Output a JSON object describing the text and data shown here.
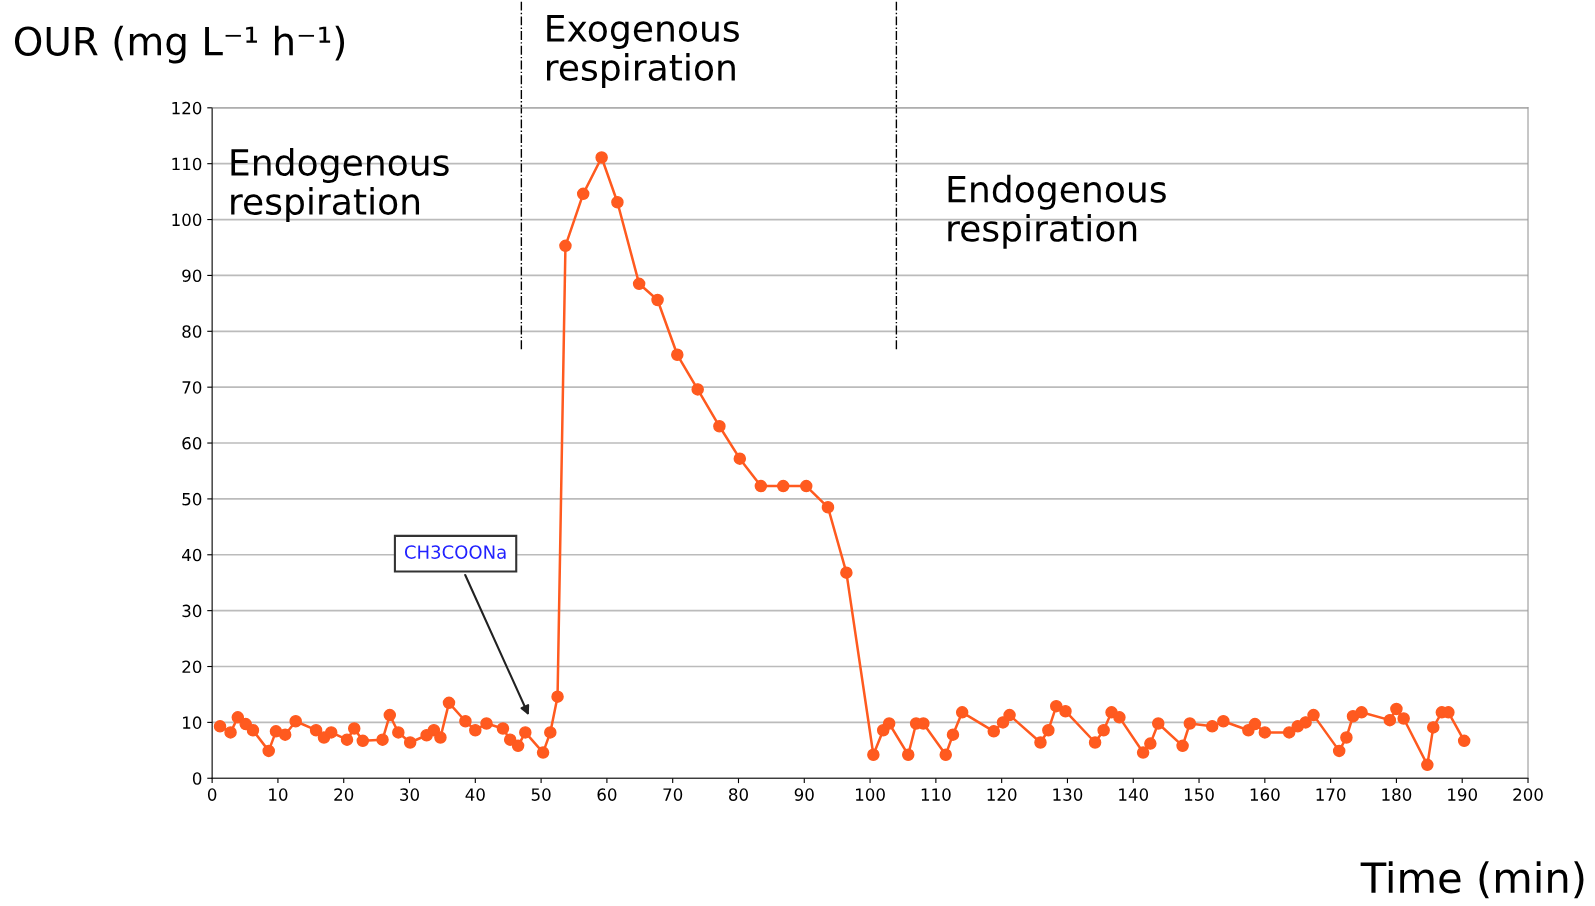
{
  "chart_data": {
    "type": "line",
    "ylabel": "OUR (mg L⁻¹ h⁻¹)",
    "xlabel": "Time (min)",
    "x": [
      1.2,
      2.8,
      3.9,
      5.1,
      6.2,
      8.6,
      9.7,
      11.1,
      12.7,
      15.8,
      17,
      18.1,
      20.5,
      21.6,
      22.9,
      25.9,
      27,
      28.3,
      30.1,
      32.6,
      33.7,
      34.7,
      36,
      38.5,
      40,
      41.7,
      44.2,
      45.3,
      46.5,
      47.6,
      50.3,
      51.4,
      52.5,
      53.7,
      56.4,
      59.2,
      61.6,
      64.9,
      67.7,
      70.7,
      73.8,
      77.1,
      80.2,
      83.4,
      86.8,
      90.3,
      93.6,
      96.4,
      100.5,
      102,
      102.9,
      105.8,
      107,
      108.1,
      111.5,
      112.6,
      114,
      118.8,
      120.2,
      121.2,
      125.9,
      127.1,
      128.3,
      129.7,
      134.2,
      135.5,
      136.7,
      137.9,
      141.5,
      142.6,
      143.8,
      147.5,
      148.6,
      152,
      153.7,
      157.5,
      158.5,
      160,
      163.7,
      165,
      166.2,
      167.4,
      171.3,
      172.4,
      173.4,
      174.7,
      179,
      180,
      181.1,
      184.7,
      185.6,
      186.9,
      187.9,
      190.3
    ],
    "series": [
      {
        "color": "#ff5a1f",
        "values": [
          9.3,
          8.2,
          10.9,
          9.7,
          8.6,
          4.9,
          8.4,
          7.8,
          10.2,
          8.6,
          7.3,
          8.2,
          6.9,
          8.9,
          6.7,
          6.9,
          11.3,
          8.2,
          6.4,
          7.7,
          8.6,
          7.3,
          13.5,
          10.2,
          8.6,
          9.8,
          8.9,
          6.9,
          5.8,
          8.2,
          4.6,
          8.2,
          14.6,
          95.3,
          104.6,
          111.1,
          103.1,
          88.5,
          85.6,
          75.8,
          69.6,
          63,
          57.2,
          52.3,
          52.3,
          52.3,
          48.5,
          36.8,
          4.2,
          8.6,
          9.8,
          4.2,
          9.8,
          9.8,
          4.2,
          7.8,
          11.8,
          8.4,
          10,
          11.3,
          6.4,
          8.6,
          12.9,
          12,
          6.4,
          8.6,
          11.8,
          10.9,
          4.6,
          6.2,
          9.8,
          5.8,
          9.8,
          9.3,
          10.2,
          8.6,
          9.7,
          8.2,
          8.2,
          9.3,
          10,
          11.3,
          4.9,
          7.3,
          11.1,
          11.8,
          10.4,
          12.4,
          10.7,
          2.4,
          9.1,
          11.8,
          11.8,
          6.7
        ]
      }
    ],
    "xlim": [
      0,
      200
    ],
    "xticks": [
      0,
      10,
      20,
      30,
      40,
      50,
      60,
      70,
      80,
      90,
      100,
      110,
      120,
      130,
      140,
      150,
      160,
      170,
      180,
      190,
      200
    ],
    "ylim": [
      0,
      120
    ],
    "yticks": [
      0,
      10,
      20,
      30,
      40,
      50,
      60,
      70,
      80,
      90,
      100,
      110,
      120
    ],
    "grid": "y",
    "marker": "circle",
    "line_style": "solid",
    "ref_lines": [
      {
        "axis": "x",
        "value": 47,
        "line_style": "dashdot",
        "color": "#000000"
      },
      {
        "axis": "x",
        "value": 104,
        "line_style": "dashdot",
        "color": "#000000"
      }
    ],
    "annotations": [
      "Endogenous\nrespiration",
      "Exogenous\nrespiration",
      "Endogenous\nrespiration",
      "CH3COONa"
    ]
  }
}
